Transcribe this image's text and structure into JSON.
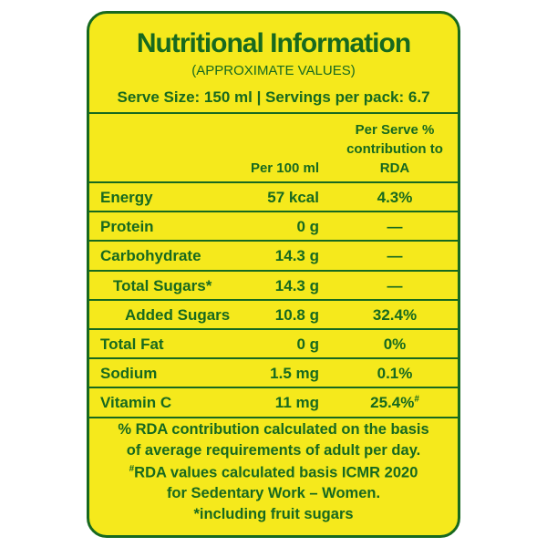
{
  "header": {
    "title": "Nutritional Information",
    "subtitle": "(APPROXIMATE VALUES)",
    "serve_info": "Serve Size: 150 ml | Servings per pack: 6.7"
  },
  "table": {
    "columns": [
      "Per 100 ml",
      "Per Serve %",
      "contribution to",
      "RDA"
    ],
    "rows": [
      {
        "nutrient": "Energy",
        "per_100ml": "57 kcal",
        "rda": "4.3%"
      },
      {
        "nutrient": "Protein",
        "per_100ml": "0 g",
        "rda": "—"
      },
      {
        "nutrient": "Carbohydrate",
        "per_100ml": "14.3 g",
        "rda": "—"
      },
      {
        "nutrient": "Total Sugars*",
        "per_100ml": "14.3 g",
        "rda": "—"
      },
      {
        "nutrient": "Added Sugars",
        "per_100ml": "10.8 g",
        "rda": "32.4%"
      },
      {
        "nutrient": "Total Fat",
        "per_100ml": "0 g",
        "rda": "0%"
      },
      {
        "nutrient": "Sodium",
        "per_100ml": "1.5 mg",
        "rda": "0.1%"
      },
      {
        "nutrient": "Vitamin C",
        "per_100ml": "11 mg",
        "rda": "25.4%",
        "rda_sup": "#"
      }
    ]
  },
  "footer": {
    "lines": [
      {
        "text": "% RDA contribution calculated on the basis"
      },
      {
        "text": "of average requirements of adult per day."
      },
      {
        "sup": "#",
        "text": "RDA values calculated basis ICMR 2020"
      },
      {
        "text": "for Sedentary Work – Women."
      },
      {
        "text": "*including fruit sugars"
      }
    ]
  }
}
